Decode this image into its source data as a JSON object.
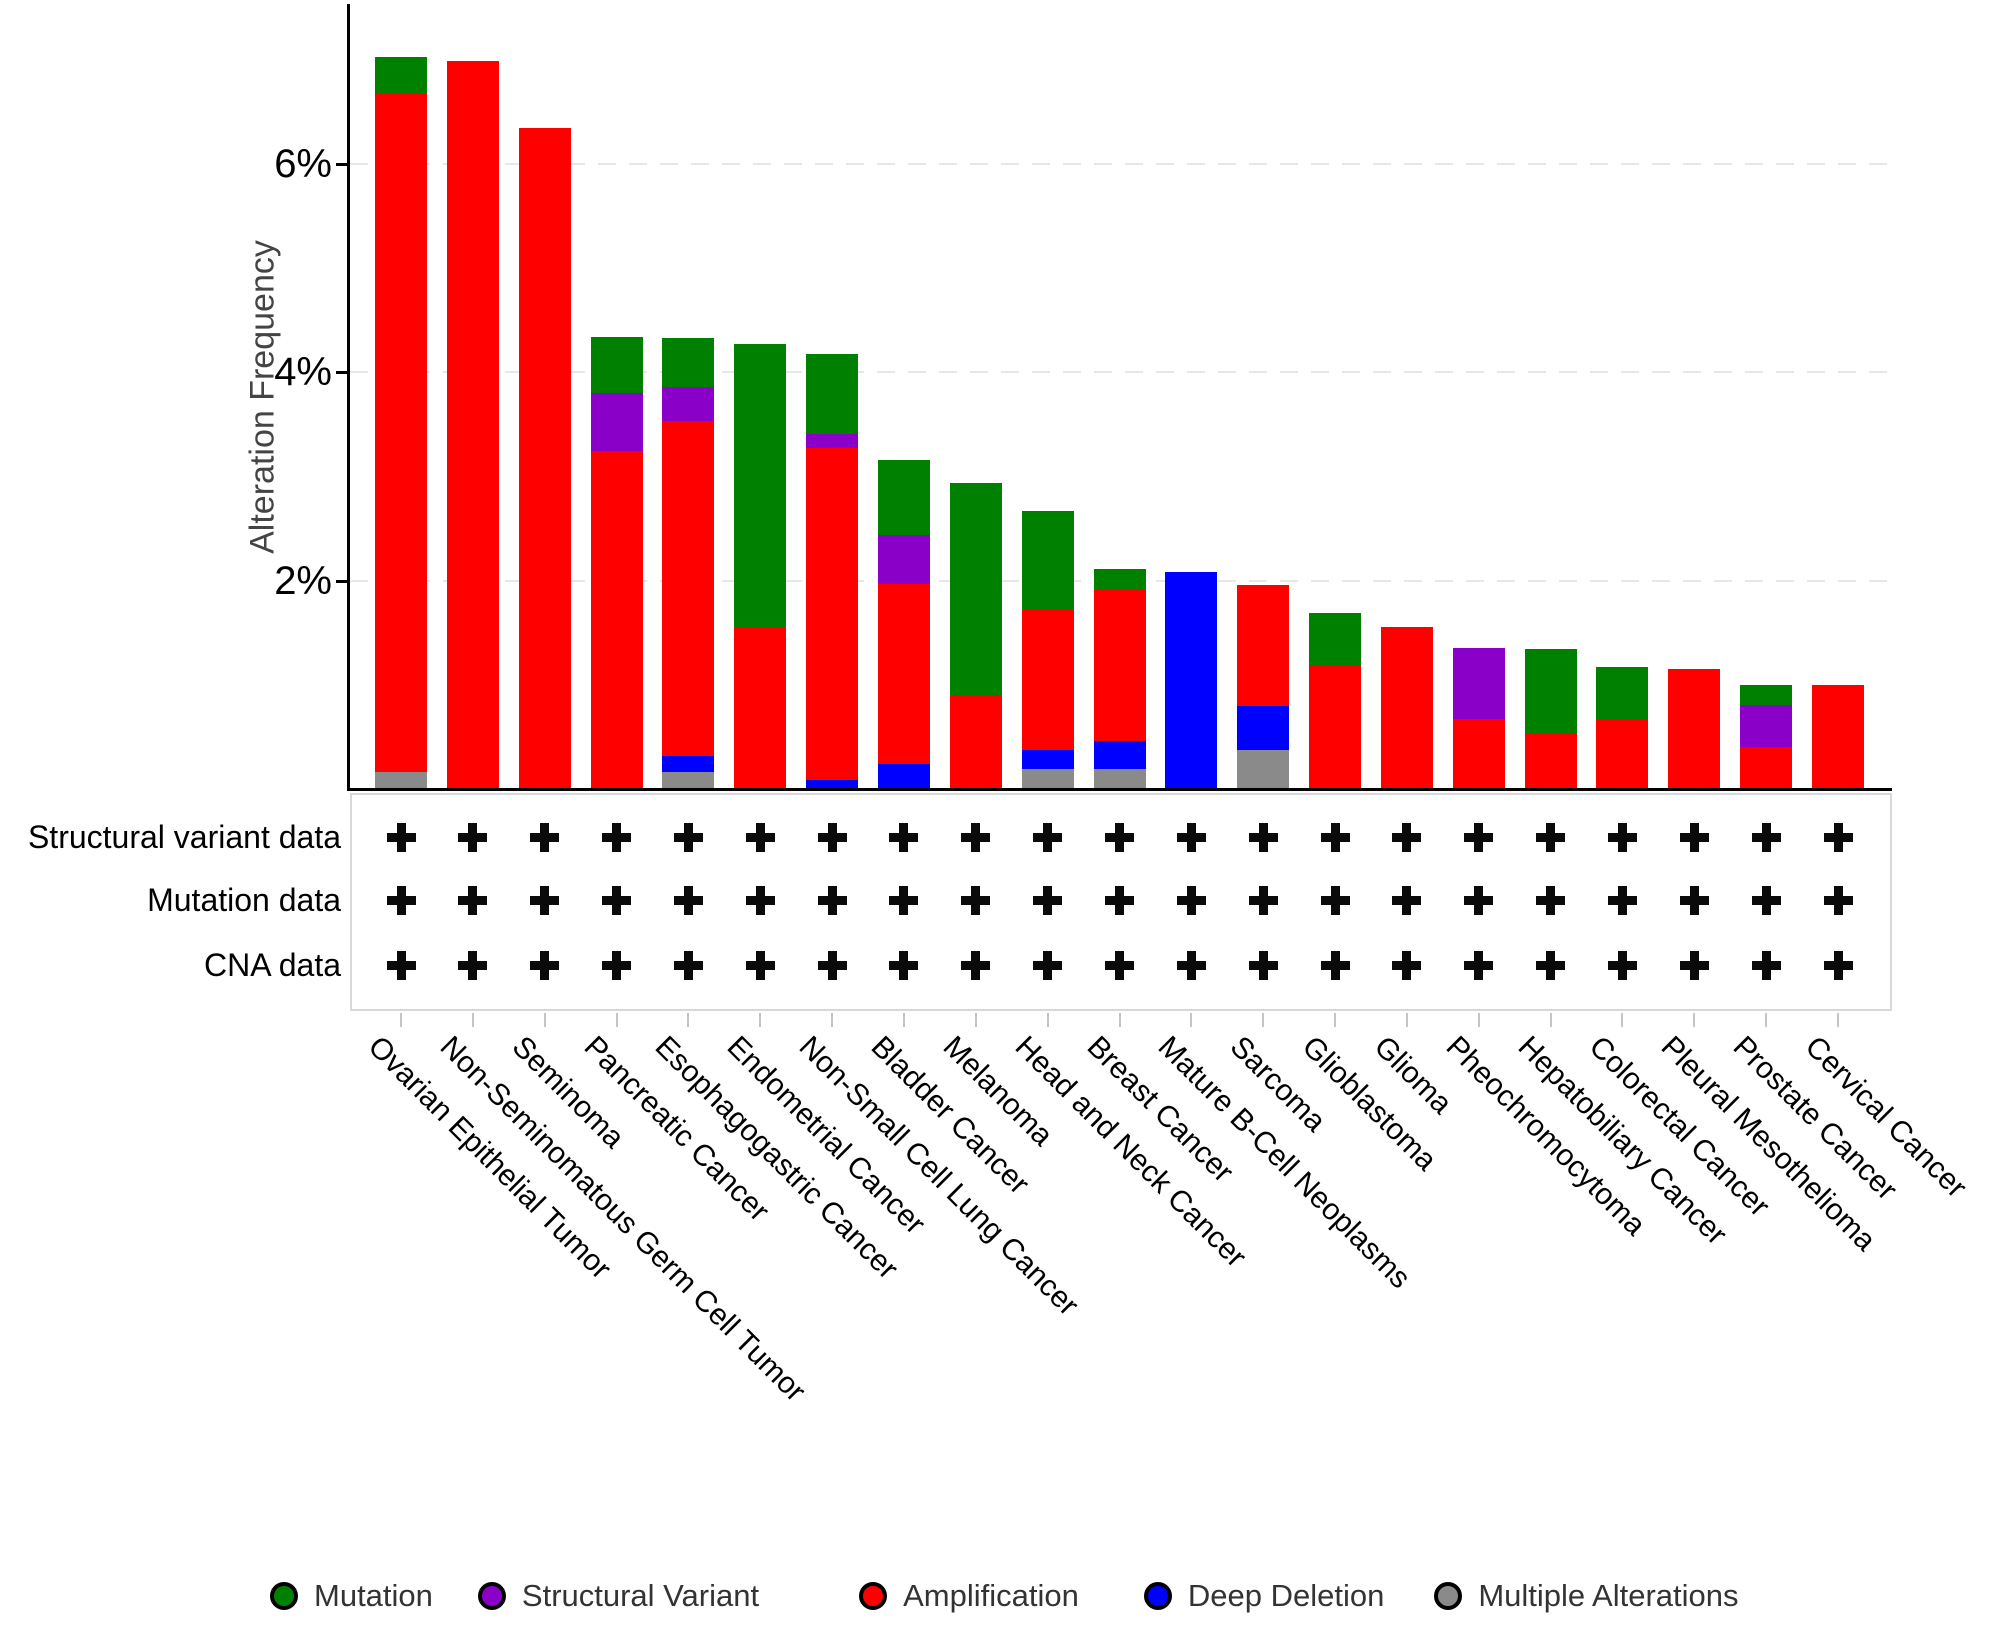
{
  "chart": {
    "y_axis_label": "Alteration Frequency",
    "y_ticks": [
      {
        "label": "6%",
        "value": 6
      },
      {
        "label": "4%",
        "value": 4
      },
      {
        "label": "2%",
        "value": 2
      }
    ]
  },
  "tracks": {
    "rows": [
      {
        "label": "Structural variant data"
      },
      {
        "label": "Mutation data"
      },
      {
        "label": "CNA data"
      }
    ],
    "marker": "+",
    "all_columns_present": true
  },
  "legend": {
    "items": [
      {
        "label": "Mutation",
        "color": "#008000"
      },
      {
        "label": "Structural Variant",
        "color": "#8B00C9"
      },
      {
        "label": "Amplification",
        "color": "#FF0000"
      },
      {
        "label": "Deep Deletion",
        "color": "#0000FF"
      },
      {
        "label": "Multiple Alterations",
        "color": "#8A8A8A"
      }
    ]
  },
  "colors": {
    "mutation": "#008000",
    "structural_variant": "#8B00C9",
    "amplification": "#FF0000",
    "deep_deletion": "#0000FF",
    "multiple_alterations": "#8A8A8A",
    "axis": "#000000",
    "grid": "#e7e7e7",
    "panel_border": "#d8d8d8"
  },
  "chart_data": {
    "type": "bar",
    "stacked": true,
    "stack_order": "top-to-bottom",
    "title": "",
    "xlabel": "",
    "ylabel": "Alteration Frequency",
    "ylim": [
      0,
      7.55
    ],
    "yticks": [
      2,
      4,
      6
    ],
    "ytick_labels": [
      "2%",
      "4%",
      "6%"
    ],
    "grid": "dashed-horizontal",
    "legend_position": "bottom",
    "categories": [
      "Ovarian Epithelial Tumor",
      "Non-Seminomatous Germ Cell Tumor",
      "Seminoma",
      "Pancreatic Cancer",
      "Esophagogastric Cancer",
      "Endometrial Cancer",
      "Non-Small Cell Lung Cancer",
      "Bladder Cancer",
      "Melanoma",
      "Head and Neck Cancer",
      "Breast Cancer",
      "Mature B-Cell Neoplasms",
      "Sarcoma",
      "Glioblastoma",
      "Glioma",
      "Pheochromocytoma",
      "Hepatobiliary Cancer",
      "Colorectal Cancer",
      "Pleural Mesothelioma",
      "Prostate Cancer",
      "Cervical Cancer"
    ],
    "series": [
      {
        "name": "Mutation",
        "color": "#008000",
        "values": [
          0.34,
          0,
          0,
          0.54,
          0.47,
          2.72,
          0.77,
          0.72,
          2.03,
          0.95,
          0.19,
          0,
          0,
          0.5,
          0,
          0,
          0.81,
          0.51,
          0,
          0.2,
          0
        ]
      },
      {
        "name": "Structural Variant",
        "color": "#8B00C9",
        "values": [
          0,
          0,
          0,
          0.55,
          0.33,
          0,
          0.13,
          0.47,
          0,
          0,
          0,
          0,
          0,
          0,
          0,
          0.68,
          0,
          0,
          0,
          0.4,
          0
        ]
      },
      {
        "name": "Amplification",
        "color": "#FF0000",
        "values": [
          6.51,
          6.98,
          6.34,
          3.25,
          3.2,
          1.55,
          3.18,
          1.72,
          0.91,
          1.34,
          1.46,
          0,
          1.16,
          1.2,
          1.56,
          0.68,
          0.54,
          0.67,
          1.16,
          0.41,
          1.01
        ]
      },
      {
        "name": "Deep Deletion",
        "color": "#0000FF",
        "values": [
          0,
          0,
          0,
          0,
          0.16,
          0,
          0.1,
          0.25,
          0,
          0.18,
          0.27,
          2.09,
          0.42,
          0,
          0,
          0,
          0,
          0,
          0,
          0,
          0
        ]
      },
      {
        "name": "Multiple Alterations",
        "color": "#8A8A8A",
        "values": [
          0.17,
          0,
          0,
          0,
          0.17,
          0,
          0,
          0,
          0,
          0.2,
          0.2,
          0,
          0.38,
          0,
          0,
          0,
          0,
          0,
          0,
          0,
          0
        ]
      }
    ]
  }
}
